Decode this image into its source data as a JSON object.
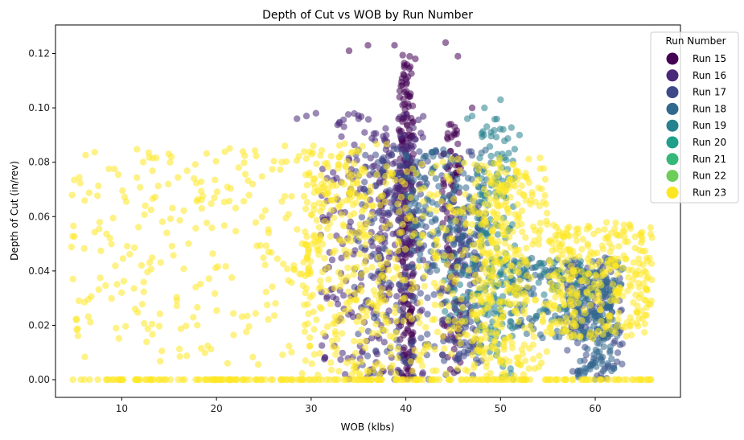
{
  "chart_data": {
    "type": "scatter",
    "title": "Depth of Cut vs WOB by Run Number",
    "xlabel": "WOB (klbs)",
    "ylabel": "Depth of Cut (in/rev)",
    "xlim": [
      3,
      69
    ],
    "ylim": [
      -0.0065,
      0.1305
    ],
    "x_ticks": [
      10,
      20,
      30,
      40,
      50,
      60
    ],
    "y_ticks": [
      0.0,
      0.02,
      0.04,
      0.06,
      0.08,
      0.1,
      0.12
    ],
    "grid": false,
    "legend": {
      "title": "Run Number",
      "placement": "upper-right"
    },
    "series": [
      {
        "name": "Run 15",
        "color": "#440154",
        "clusters": [
          {
            "x": [
              39.2,
              40.8
            ],
            "y": [
              0.0,
              0.12
            ],
            "n": 230
          },
          {
            "x": [
              43.8,
              45.8
            ],
            "y": [
              0.0,
              0.095
            ],
            "n": 110
          }
        ],
        "points": [
          [
            34.0,
            0.121
          ],
          [
            36.0,
            0.123
          ],
          [
            38.8,
            0.123
          ],
          [
            44.2,
            0.124
          ],
          [
            45.5,
            0.119
          ],
          [
            41.0,
            0.118
          ],
          [
            47.0,
            0.1
          ]
        ]
      },
      {
        "name": "Run 16",
        "color": "#482878",
        "clusters": [
          {
            "x": [
              31.0,
              42.0
            ],
            "y": [
              0.0,
              0.098
            ],
            "n": 230
          },
          {
            "x": [
              37.0,
              41.0
            ],
            "y": [
              0.03,
              0.09
            ],
            "n": 140
          }
        ],
        "points": [
          [
            28.5,
            0.096
          ],
          [
            29.5,
            0.097
          ],
          [
            30.5,
            0.098
          ]
        ]
      },
      {
        "name": "Run 17",
        "color": "#3E4989",
        "clusters": [
          {
            "x": [
              34.5,
              47.0
            ],
            "y": [
              0.0,
              0.085
            ],
            "n": 220
          },
          {
            "x": [
              45.0,
              48.0
            ],
            "y": [
              0.0,
              0.065
            ],
            "n": 110
          },
          {
            "x": [
              57.0,
              63.0
            ],
            "y": [
              0.0,
              0.045
            ],
            "n": 130
          }
        ],
        "points": []
      },
      {
        "name": "Run 18",
        "color": "#31688E",
        "clusters": [
          {
            "x": [
              40.0,
              49.0
            ],
            "y": [
              0.04,
              0.085
            ],
            "n": 150
          },
          {
            "x": [
              51.0,
              63.0
            ],
            "y": [
              0.015,
              0.045
            ],
            "n": 200
          },
          {
            "x": [
              58.0,
              62.0
            ],
            "y": [
              0.0,
              0.04
            ],
            "n": 110
          }
        ],
        "points": []
      },
      {
        "name": "Run 19",
        "color": "#26828E",
        "clusters": [
          {
            "x": [
              47.5,
              51.5
            ],
            "y": [
              0.0,
              0.097
            ],
            "n": 150
          },
          {
            "x": [
              44.0,
              60.0
            ],
            "y": [
              0.02,
              0.045
            ],
            "n": 90
          }
        ],
        "points": [
          [
            50.0,
            0.103
          ],
          [
            48.3,
            0.1
          ],
          [
            47.0,
            0.097
          ],
          [
            46.5,
            0.096
          ],
          [
            52.0,
            0.09
          ],
          [
            49.0,
            0.091
          ]
        ]
      },
      {
        "name": "Run 20",
        "color": "#1F9E89",
        "clusters": [],
        "points": []
      },
      {
        "name": "Run 21",
        "color": "#35B779",
        "clusters": [],
        "points": []
      },
      {
        "name": "Run 22",
        "color": "#6DCD59",
        "clusters": [],
        "points": []
      },
      {
        "name": "Run 23",
        "color": "#FDE725",
        "clusters": [
          {
            "x": [
              4.5,
              29.0
            ],
            "y": [
              0.005,
              0.086
            ],
            "n": 230
          },
          {
            "x": [
              4.5,
              66.0
            ],
            "y": [
              0.0,
              0.0
            ],
            "n": 230
          },
          {
            "x": [
              29.0,
              38.0
            ],
            "y": [
              0.0,
              0.087
            ],
            "n": 330
          },
          {
            "x": [
              38.0,
              55.0
            ],
            "y": [
              0.0,
              0.082
            ],
            "n": 360
          },
          {
            "x": [
              47.0,
              52.0
            ],
            "y": [
              0.0,
              0.08
            ],
            "n": 200
          },
          {
            "x": [
              55.0,
              66.0
            ],
            "y": [
              0.015,
              0.058
            ],
            "n": 330
          }
        ],
        "points": []
      }
    ]
  }
}
